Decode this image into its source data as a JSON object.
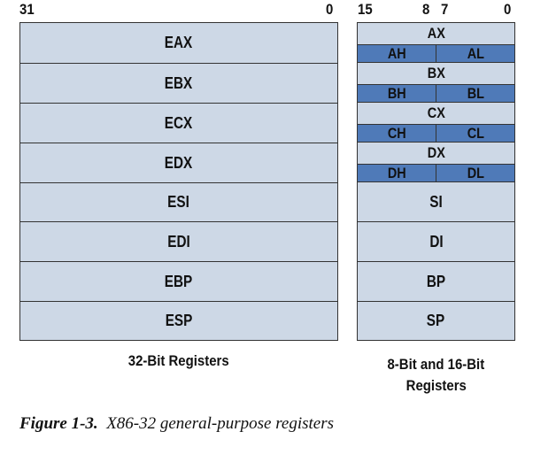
{
  "bit_labels": {
    "left_high": "31",
    "left_low": "0",
    "right_high": "15",
    "right_mid_high": "8",
    "right_mid_low": "7",
    "right_low": "0"
  },
  "registers_32": [
    "EAX",
    "EBX",
    "ECX",
    "EDX",
    "ESI",
    "EDI",
    "EBP",
    "ESP"
  ],
  "registers_16_split": [
    {
      "name": "AX",
      "high": "AH",
      "low": "AL"
    },
    {
      "name": "BX",
      "high": "BH",
      "low": "BL"
    },
    {
      "name": "CX",
      "high": "CH",
      "low": "CL"
    },
    {
      "name": "DX",
      "high": "DH",
      "low": "DL"
    }
  ],
  "registers_16": [
    "SI",
    "DI",
    "BP",
    "SP"
  ],
  "captions": {
    "left": "32-Bit Registers",
    "right_line1": "8-Bit and 16-Bit",
    "right_line2": "Registers"
  },
  "figure": {
    "label": "Figure 1-3.",
    "text": "X86-32 general-purpose registers"
  },
  "colors": {
    "register_fill": "#cdd8e6",
    "byte_fill": "#4f7ab8",
    "border": "#333333"
  }
}
